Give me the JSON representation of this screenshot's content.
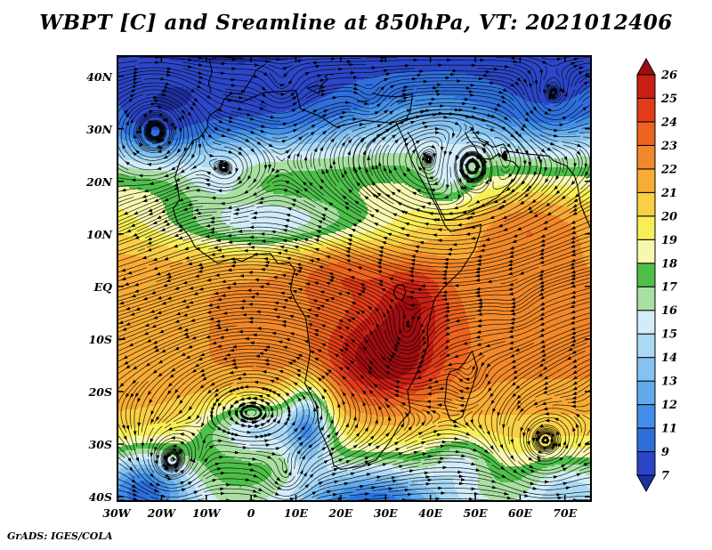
{
  "title": "WBPT [C] and Sreamline at 850hPa, VT: 2021012406",
  "credit": "GrADS: IGES/COLA",
  "chart_data": {
    "type": "streamline_colormap",
    "variable": "WBPT [C] and Streamline at 850hPa",
    "valid_time": "2021012406",
    "lon_range": [
      -30,
      76
    ],
    "lat_range": [
      -41,
      44
    ],
    "x_tick_lons": [
      -30,
      -20,
      -10,
      0,
      10,
      20,
      30,
      40,
      50,
      60,
      70
    ],
    "x_tick_labels": [
      "30W",
      "20W",
      "10W",
      "0",
      "10E",
      "20E",
      "30E",
      "40E",
      "50E",
      "60E",
      "70E"
    ],
    "y_tick_lats": [
      40,
      30,
      20,
      10,
      0,
      -10,
      -20,
      -30,
      -40
    ],
    "y_tick_labels": [
      "40N",
      "30N",
      "20N",
      "10N",
      "EQ",
      "10S",
      "20S",
      "30S",
      "40S"
    ],
    "colorbar": {
      "levels": [
        7,
        9,
        11,
        12,
        13,
        14,
        15,
        16,
        17,
        18,
        19,
        20,
        21,
        22,
        23,
        24,
        25,
        26
      ],
      "colors": [
        "#1f2fa0",
        "#2b46c8",
        "#2f6fdd",
        "#418fe8",
        "#62aaec",
        "#86c2f0",
        "#aadaf5",
        "#d2ecf8",
        "#a9e0a2",
        "#4fbf4c",
        "#f8f7b0",
        "#f7ee58",
        "#f9cf45",
        "#f8ab35",
        "#f2882a",
        "#ec6420",
        "#e33c1b",
        "#c81f14",
        "#9e0d10"
      ]
    },
    "field_model": {
      "base": {
        "peak": 22.5,
        "lat": -8,
        "coef": 0.0055
      },
      "blobs": [
        [
          4.8,
          30,
          -14,
          13,
          9
        ],
        [
          3.0,
          36,
          -2,
          8,
          7
        ],
        [
          2.0,
          20,
          3,
          10,
          6
        ],
        [
          2.5,
          62,
          12,
          14,
          7
        ],
        [
          -5.0,
          4,
          12,
          24,
          5.5
        ],
        [
          -4.5,
          0,
          34,
          26,
          8
        ],
        [
          -4.0,
          -22,
          31,
          12,
          8
        ],
        [
          -3.5,
          66,
          34,
          16,
          8
        ],
        [
          -5.5,
          1,
          -27,
          13,
          6
        ],
        [
          -6.5,
          13,
          -26,
          5,
          8
        ],
        [
          -7.0,
          -24,
          -38,
          11,
          7
        ],
        [
          -6.5,
          27,
          -41,
          16,
          8
        ],
        [
          -3.0,
          47,
          -33,
          7,
          5
        ],
        [
          -3.0,
          71,
          -38,
          10,
          6
        ],
        [
          -1.5,
          -22,
          -8,
          12,
          9
        ],
        [
          -2.5,
          44,
          20,
          6,
          5
        ],
        [
          -2.0,
          -8,
          20,
          8,
          4
        ]
      ]
    },
    "wind_model": {
      "zonal_amp": 3.0,
      "zonal_c2": 576,
      "wave_amp": 1.0,
      "wave_lon_scale": 14,
      "wave_lat_scale": 28,
      "vortices": [
        [
          -1.2,
          -21,
          30,
          8
        ],
        [
          0.9,
          -18,
          -34,
          6
        ],
        [
          0.8,
          49,
          23,
          5
        ],
        [
          -0.9,
          34,
          -11,
          7
        ],
        [
          -0.6,
          49,
          -18,
          4
        ],
        [
          0.6,
          7,
          37,
          4.5
        ],
        [
          -0.55,
          59,
          -4,
          4.5
        ],
        [
          0.5,
          27,
          35,
          4
        ],
        [
          -0.5,
          -5,
          22,
          7
        ],
        [
          0.7,
          67,
          35,
          6
        ],
        [
          0.8,
          65,
          -30,
          7
        ],
        [
          0.5,
          8,
          -38,
          5
        ]
      ]
    },
    "coastlines": [
      [
        [
          -5.9,
          35.8
        ],
        [
          -2,
          35.1
        ],
        [
          3,
          36.9
        ],
        [
          10,
          37.3
        ],
        [
          11,
          33.8
        ],
        [
          15.3,
          32.4
        ],
        [
          19,
          30.3
        ],
        [
          25,
          31.6
        ],
        [
          31,
          31.1
        ],
        [
          32.3,
          31.3
        ],
        [
          34.2,
          27.8
        ],
        [
          35.8,
          23.9
        ],
        [
          37.5,
          21
        ],
        [
          39.5,
          18
        ],
        [
          41.5,
          15
        ],
        [
          43.3,
          11.5
        ],
        [
          44.5,
          10.4
        ],
        [
          46.5,
          10.8
        ],
        [
          48.9,
          11.3
        ],
        [
          51.3,
          11.8
        ],
        [
          51.1,
          10.4
        ],
        [
          49.8,
          7
        ],
        [
          46.8,
          3
        ],
        [
          42.6,
          -0.5
        ],
        [
          40.9,
          -2.5
        ],
        [
          40.2,
          -5
        ],
        [
          39.3,
          -8
        ],
        [
          39.5,
          -11
        ],
        [
          38,
          -14.5
        ],
        [
          36.3,
          -17.7
        ],
        [
          34.9,
          -19.8
        ],
        [
          35.5,
          -23.8
        ],
        [
          33.3,
          -26
        ],
        [
          31,
          -29.5
        ],
        [
          27.9,
          -33
        ],
        [
          24.5,
          -34.2
        ],
        [
          20,
          -34.8
        ],
        [
          18.4,
          -34
        ],
        [
          17.9,
          -32
        ],
        [
          15.2,
          -27
        ],
        [
          14.5,
          -22.5
        ],
        [
          12,
          -18.5
        ],
        [
          13.2,
          -12.5
        ],
        [
          12.2,
          -6
        ],
        [
          9.7,
          -2.5
        ],
        [
          8.8,
          -0.7
        ],
        [
          9.3,
          1.9
        ],
        [
          9.8,
          3.2
        ],
        [
          8.5,
          4.5
        ],
        [
          6,
          4.3
        ],
        [
          4.3,
          6.3
        ],
        [
          1.2,
          6.1
        ],
        [
          -2,
          4.8
        ],
        [
          -4.1,
          5.3
        ],
        [
          -7.5,
          4.4
        ],
        [
          -12.5,
          7.5
        ],
        [
          -13.8,
          9.6
        ],
        [
          -16.5,
          12.3
        ],
        [
          -17.4,
          14.7
        ],
        [
          -16,
          16.5
        ],
        [
          -16.5,
          19.5
        ],
        [
          -17,
          20.8
        ],
        [
          -15.9,
          23.7
        ],
        [
          -14.8,
          25.2
        ],
        [
          -13,
          27.7
        ],
        [
          -11.5,
          28.3
        ],
        [
          -9.6,
          30.4
        ],
        [
          -9.8,
          31.4
        ],
        [
          -9.2,
          32.6
        ],
        [
          -6.8,
          34
        ],
        [
          -5.9,
          35.8
        ]
      ],
      [
        [
          44.3,
          -25.2
        ],
        [
          43.2,
          -22.3
        ],
        [
          43.7,
          -17.5
        ],
        [
          44.4,
          -16.2
        ],
        [
          46.3,
          -15.7
        ],
        [
          47.5,
          -14.6
        ],
        [
          49.3,
          -12.3
        ],
        [
          50.2,
          -14.8
        ],
        [
          50.5,
          -15.6
        ],
        [
          49.6,
          -18.5
        ],
        [
          47.1,
          -24.8
        ],
        [
          45.2,
          -25.6
        ],
        [
          44.3,
          -25.2
        ]
      ],
      [
        [
          34.9,
          29.4
        ],
        [
          36,
          28
        ],
        [
          37.5,
          24.3
        ],
        [
          39,
          21.3
        ],
        [
          41,
          16.5
        ],
        [
          43.3,
          12.7
        ],
        [
          45,
          12.8
        ],
        [
          48.5,
          14
        ],
        [
          52.2,
          15.6
        ],
        [
          55,
          17
        ],
        [
          58.8,
          20.4
        ],
        [
          59.8,
          22.5
        ],
        [
          58.5,
          23.7
        ],
        [
          56.3,
          24.2
        ],
        [
          55.3,
          25.3
        ],
        [
          53.5,
          24.2
        ],
        [
          51.5,
          24.3
        ],
        [
          50.8,
          25
        ],
        [
          50,
          26.5
        ],
        [
          48.5,
          28
        ],
        [
          47.7,
          29.4
        ]
      ],
      [
        [
          48.8,
          30.4
        ],
        [
          51,
          27.8
        ],
        [
          54,
          26.5
        ],
        [
          56.3,
          27.1
        ],
        [
          57.3,
          25.7
        ],
        [
          61.6,
          25.2
        ],
        [
          66.5,
          24.8
        ],
        [
          67.5,
          23.9
        ],
        [
          70.4,
          22.9
        ],
        [
          72.1,
          21.1
        ],
        [
          72.8,
          19.2
        ],
        [
          73.5,
          15.6
        ],
        [
          74.8,
          12.9
        ],
        [
          76.2,
          10.1
        ],
        [
          77.5,
          8.1
        ],
        [
          78.2,
          8.9
        ],
        [
          79.9,
          10.3
        ],
        [
          80.3,
          13.5
        ]
      ],
      [
        [
          -8.9,
          36.9
        ],
        [
          -9.5,
          38.7
        ],
        [
          -8.7,
          40.8
        ],
        [
          -9.3,
          43.2
        ],
        [
          -7.3,
          43.7
        ],
        [
          -3.6,
          43.5
        ],
        [
          -1.8,
          43.4
        ]
      ],
      [
        [
          -5.6,
          36
        ],
        [
          -4.4,
          36.7
        ],
        [
          -2.1,
          36.7
        ],
        [
          -0.3,
          38.9
        ],
        [
          1.1,
          41.1
        ],
        [
          3.2,
          42.3
        ]
      ],
      [
        [
          12.4,
          37.8
        ],
        [
          15.1,
          36.7
        ],
        [
          15.6,
          38.2
        ],
        [
          12.4,
          37.8
        ]
      ],
      [
        [
          15.6,
          38.2
        ],
        [
          16.1,
          38.7
        ],
        [
          17.1,
          39.4
        ],
        [
          16.5,
          39.9
        ],
        [
          17.3,
          40.4
        ],
        [
          18.4,
          40.3
        ]
      ],
      [
        [
          27,
          36.8
        ],
        [
          29,
          36.3
        ],
        [
          32,
          36.1
        ],
        [
          34,
          36.2
        ],
        [
          36,
          36.6
        ]
      ],
      [
        [
          36,
          36.6
        ],
        [
          35.8,
          35.2
        ],
        [
          35.5,
          33.3
        ],
        [
          34.6,
          31.9
        ],
        [
          32.3,
          31.3
        ]
      ],
      [
        [
          23.6,
          35.2
        ],
        [
          26.3,
          35.3
        ]
      ],
      [
        [
          32.3,
          35.1
        ],
        [
          34.6,
          35.4
        ]
      ],
      [
        [
          32.5,
          0.2
        ],
        [
          34,
          0.3
        ],
        [
          34.5,
          -1
        ],
        [
          33.8,
          -2.6
        ],
        [
          32.3,
          -2.3
        ],
        [
          31.8,
          -1
        ],
        [
          32.5,
          0.2
        ]
      ]
    ]
  }
}
